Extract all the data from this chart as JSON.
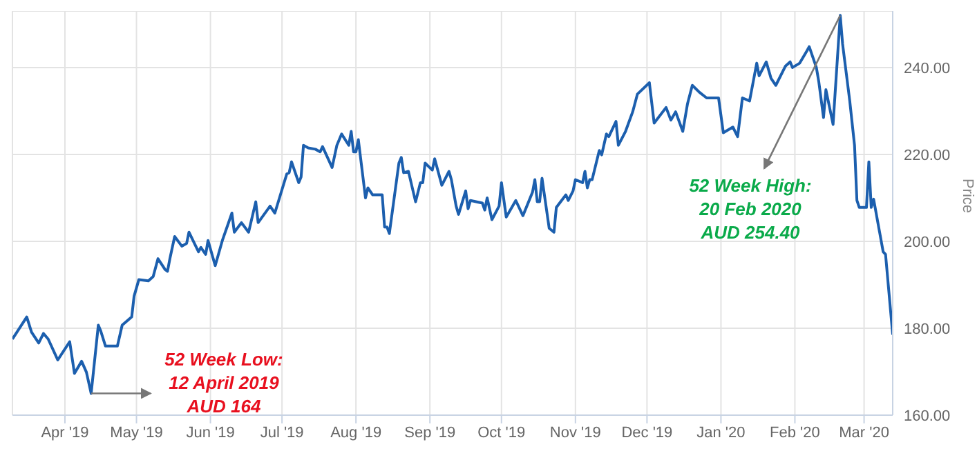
{
  "chart_data": {
    "type": "line",
    "ylabel": "Price",
    "x": [
      "2019-03-10",
      "2019-03-16",
      "2019-03-18",
      "2019-03-21",
      "2019-03-23",
      "2019-03-25",
      "2019-03-29",
      "2019-04-03",
      "2019-04-05",
      "2019-04-08",
      "2019-04-10",
      "2019-04-12",
      "2019-04-15",
      "2019-04-16",
      "2019-04-18",
      "2019-04-23",
      "2019-04-25",
      "2019-04-29",
      "2019-04-30",
      "2019-05-02",
      "2019-05-06",
      "2019-05-08",
      "2019-05-10",
      "2019-05-13",
      "2019-05-14",
      "2019-05-15",
      "2019-05-17",
      "2019-05-20",
      "2019-05-22",
      "2019-05-23",
      "2019-05-27",
      "2019-05-28",
      "2019-05-30",
      "2019-05-31",
      "2019-06-03",
      "2019-06-06",
      "2019-06-10",
      "2019-06-11",
      "2019-06-14",
      "2019-06-17",
      "2019-06-20",
      "2019-06-21",
      "2019-06-26",
      "2019-06-28",
      "2019-07-03",
      "2019-07-04",
      "2019-07-05",
      "2019-07-08",
      "2019-07-09",
      "2019-07-10",
      "2019-07-12",
      "2019-07-15",
      "2019-07-17",
      "2019-07-18",
      "2019-07-22",
      "2019-07-24",
      "2019-07-26",
      "2019-07-29",
      "2019-07-30",
      "2019-07-31",
      "2019-08-01",
      "2019-08-02",
      "2019-08-05",
      "2019-08-06",
      "2019-08-08",
      "2019-08-12",
      "2019-08-13",
      "2019-08-14",
      "2019-08-15",
      "2019-08-19",
      "2019-08-20",
      "2019-08-21",
      "2019-08-23",
      "2019-08-26",
      "2019-08-28",
      "2019-08-29",
      "2019-08-30",
      "2019-09-02",
      "2019-09-03",
      "2019-09-06",
      "2019-09-09",
      "2019-09-10",
      "2019-09-12",
      "2019-09-13",
      "2019-09-16",
      "2019-09-17",
      "2019-09-18",
      "2019-09-23",
      "2019-09-24",
      "2019-09-25",
      "2019-09-27",
      "2019-09-30",
      "2019-10-01",
      "2019-10-03",
      "2019-10-07",
      "2019-10-10",
      "2019-10-14",
      "2019-10-15",
      "2019-10-16",
      "2019-10-17",
      "2019-10-18",
      "2019-10-21",
      "2019-10-23",
      "2019-10-24",
      "2019-10-28",
      "2019-10-29",
      "2019-10-31",
      "2019-11-01",
      "2019-11-04",
      "2019-11-05",
      "2019-11-06",
      "2019-11-07",
      "2019-11-08",
      "2019-11-11",
      "2019-11-12",
      "2019-11-14",
      "2019-11-15",
      "2019-11-18",
      "2019-11-19",
      "2019-11-22",
      "2019-11-25",
      "2019-11-27",
      "2019-12-02",
      "2019-12-04",
      "2019-12-09",
      "2019-12-11",
      "2019-12-13",
      "2019-12-16",
      "2019-12-18",
      "2019-12-20",
      "2019-12-23",
      "2019-12-26",
      "2019-12-31",
      "2020-01-02",
      "2020-01-06",
      "2020-01-08",
      "2020-01-10",
      "2020-01-13",
      "2020-01-16",
      "2020-01-17",
      "2020-01-20",
      "2020-01-22",
      "2020-01-24",
      "2020-01-28",
      "2020-01-30",
      "2020-01-31",
      "2020-02-03",
      "2020-02-06",
      "2020-02-07",
      "2020-02-10",
      "2020-02-11",
      "2020-02-13",
      "2020-02-14",
      "2020-02-17",
      "2020-02-20",
      "2020-02-21",
      "2020-02-24",
      "2020-02-26",
      "2020-02-27",
      "2020-02-28",
      "2020-03-02",
      "2020-03-03",
      "2020-03-04",
      "2020-03-05",
      "2020-03-09",
      "2020-03-10",
      "2020-03-13"
    ],
    "series": [
      {
        "color": "#1c5fae",
        "values": [
          177.5,
          182.6,
          179.1,
          176.6,
          178.8,
          177.5,
          172.7,
          176.9,
          169.6,
          172.4,
          169.9,
          165,
          180.7,
          179.4,
          175.9,
          175.9,
          180.7,
          182.6,
          187.4,
          191.2,
          190.9,
          191.9,
          196,
          193.5,
          193.1,
          196,
          201.1,
          198.9,
          199.5,
          202.1,
          197.6,
          198.6,
          197,
          200.2,
          194.4,
          200.2,
          206.5,
          202.1,
          204.3,
          202.1,
          209.1,
          204.3,
          208.1,
          206.5,
          215.5,
          215.8,
          218.3,
          213.5,
          214.8,
          222.1,
          221.5,
          221.2,
          220.6,
          221.8,
          217,
          222.1,
          224.7,
          222.1,
          225.3,
          220.6,
          220.6,
          223.4,
          210,
          212.3,
          210.7,
          210.7,
          203.3,
          203.3,
          201.8,
          218,
          219.3,
          215.8,
          216.1,
          209.1,
          213.5,
          213.5,
          218,
          216.4,
          219,
          212.9,
          216.1,
          214.2,
          208.1,
          206.2,
          211.6,
          207.5,
          209.4,
          208.8,
          207.2,
          210,
          205,
          208.1,
          213.5,
          205.6,
          209.4,
          205.9,
          211.3,
          214.2,
          209.1,
          209.1,
          214.5,
          203,
          202.1,
          207.8,
          210.7,
          209.4,
          211.6,
          214.2,
          213.5,
          216.1,
          212.3,
          214.2,
          214.2,
          220.9,
          219.9,
          224.7,
          224.1,
          227.6,
          222.1,
          225.3,
          229.8,
          233.9,
          236.5,
          227.2,
          230.8,
          227.9,
          229.8,
          225.3,
          231.7,
          235.9,
          234.3,
          233,
          233,
          225,
          226.3,
          224.1,
          233,
          232.3,
          241,
          238.1,
          241.3,
          237.5,
          235.9,
          240.3,
          241.3,
          240,
          241,
          243.8,
          244.8,
          240,
          236.8,
          228.5,
          234.9,
          226.9,
          252,
          245.4,
          232.3,
          222.1,
          209.4,
          207.8,
          207.8,
          218.3,
          207.8,
          209.7,
          197.6,
          197,
          178.5
        ]
      }
    ],
    "xlim": [
      "2019-03-10",
      "2020-03-13"
    ],
    "xticks": [
      {
        "value": "2019-04-01",
        "label": "Apr '19"
      },
      {
        "value": "2019-05-01",
        "label": "May '19"
      },
      {
        "value": "2019-06-01",
        "label": "Jun '19"
      },
      {
        "value": "2019-07-01",
        "label": "Jul '19"
      },
      {
        "value": "2019-08-01",
        "label": "Aug '19"
      },
      {
        "value": "2019-09-01",
        "label": "Sep '19"
      },
      {
        "value": "2019-10-01",
        "label": "Oct '19"
      },
      {
        "value": "2019-11-01",
        "label": "Nov '19"
      },
      {
        "value": "2019-12-01",
        "label": "Dec '19"
      },
      {
        "value": "2020-01-01",
        "label": "Jan '20"
      },
      {
        "value": "2020-02-01",
        "label": "Feb '20"
      },
      {
        "value": "2020-03-01",
        "label": "Mar '20"
      }
    ],
    "ylim": [
      160,
      253
    ],
    "yticks": [
      {
        "value": 160,
        "label": "160.00"
      },
      {
        "value": 180,
        "label": "180.00"
      },
      {
        "value": 200,
        "label": "200.00"
      },
      {
        "value": 220,
        "label": "220.00"
      },
      {
        "value": 240,
        "label": "240.00"
      }
    ],
    "grid": true,
    "legend": false,
    "marker": "none",
    "line_style": "solid",
    "annotations": [
      {
        "text": "52 Week Low:\n12 April 2019\nAUD 164",
        "x": "2019-04-12",
        "y": 165
      },
      {
        "text": "52 Week High:\n20 Feb 2020\nAUD 254.40",
        "x": "2020-02-20",
        "y": 252
      }
    ]
  }
}
